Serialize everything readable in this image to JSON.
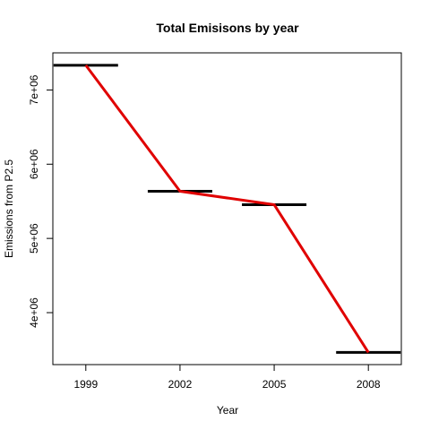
{
  "chart_data": {
    "type": "line",
    "title": "Total Emisisons by year",
    "xlabel": "Year",
    "ylabel": "Emissions from P2.5",
    "categories": [
      "1999",
      "2002",
      "2005",
      "2008"
    ],
    "x": [
      1999,
      2002,
      2005,
      2008
    ],
    "series": [
      {
        "values": [
          7332967,
          5635780,
          5454703,
          3464206
        ],
        "color": "#e00000",
        "style": "line"
      },
      {
        "values": [
          7332967,
          5635780,
          5454703,
          3464206
        ],
        "color": "#000000",
        "style": "horizontal-segments"
      }
    ],
    "y_ticks": [
      4000000,
      5000000,
      6000000,
      7000000
    ],
    "y_tick_labels": [
      "4e+06",
      "5e+06",
      "6e+06",
      "7e+06"
    ],
    "ylim": [
      3300000,
      7500000
    ],
    "grid": false,
    "legend": "none"
  }
}
